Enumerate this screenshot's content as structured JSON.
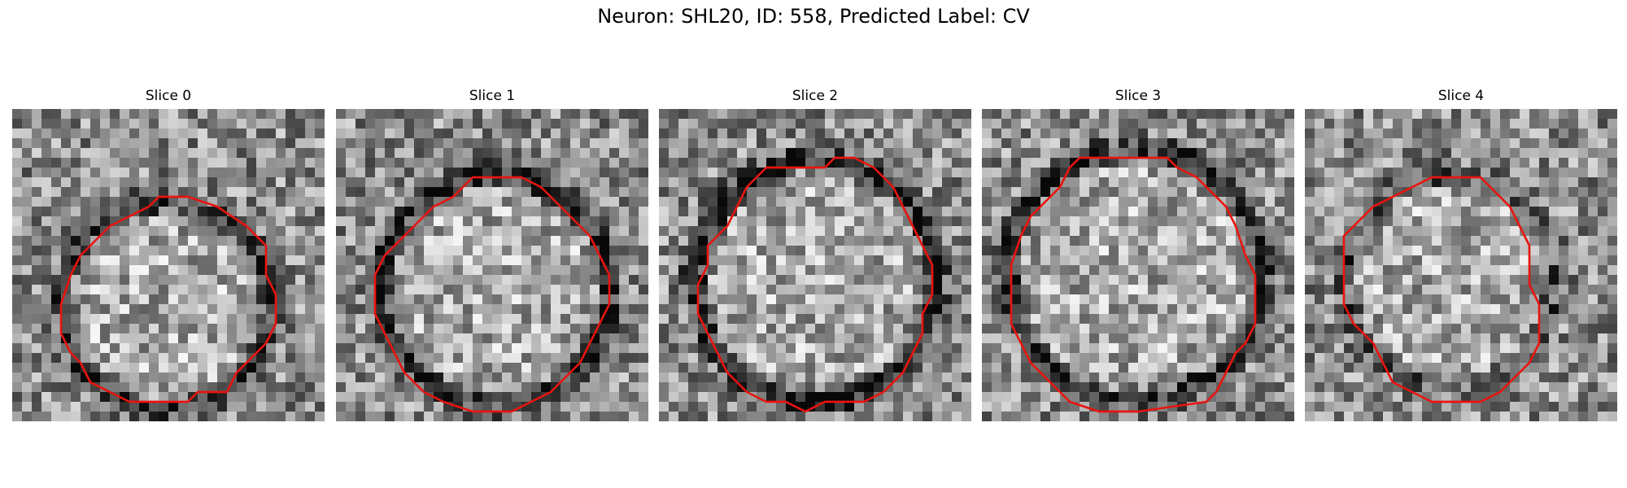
{
  "figure": {
    "title": "Neuron: SHL20, ID: 558, Predicted Label: CV"
  },
  "panels": [
    {
      "title": "Slice 0",
      "seed": 11,
      "dark_ring": 0.55,
      "contour": [
        [
          15,
          9
        ],
        [
          18,
          9
        ],
        [
          21,
          10
        ],
        [
          24,
          12
        ],
        [
          26,
          14
        ],
        [
          26,
          17
        ],
        [
          27,
          19
        ],
        [
          27,
          22
        ],
        [
          26,
          24
        ],
        [
          25,
          25
        ],
        [
          23,
          27
        ],
        [
          22,
          29
        ],
        [
          19,
          29
        ],
        [
          18,
          30
        ],
        [
          15,
          30
        ],
        [
          13,
          30
        ],
        [
          12,
          30
        ],
        [
          10,
          29
        ],
        [
          8,
          28
        ],
        [
          7,
          26
        ],
        [
          6,
          25
        ],
        [
          5,
          23
        ],
        [
          5,
          20
        ],
        [
          6,
          17
        ],
        [
          7,
          15
        ],
        [
          9,
          13
        ],
        [
          10,
          12
        ],
        [
          12,
          11
        ],
        [
          14,
          10
        ],
        [
          15,
          9
        ]
      ]
    },
    {
      "title": "Slice 1",
      "seed": 23,
      "dark_ring": 0.7,
      "contour": [
        [
          14,
          7
        ],
        [
          17,
          7
        ],
        [
          19,
          7
        ],
        [
          21,
          8
        ],
        [
          23,
          10
        ],
        [
          25,
          12
        ],
        [
          26,
          13
        ],
        [
          27,
          15
        ],
        [
          28,
          17
        ],
        [
          28,
          20
        ],
        [
          27,
          22
        ],
        [
          26,
          24
        ],
        [
          25,
          26
        ],
        [
          24,
          27
        ],
        [
          22,
          29
        ],
        [
          20,
          30
        ],
        [
          18,
          31
        ],
        [
          14,
          31
        ],
        [
          11,
          30
        ],
        [
          9,
          29
        ],
        [
          7,
          27
        ],
        [
          6,
          25
        ],
        [
          5,
          23
        ],
        [
          4,
          21
        ],
        [
          4,
          17
        ],
        [
          5,
          15
        ],
        [
          7,
          13
        ],
        [
          8,
          12
        ],
        [
          10,
          10
        ],
        [
          12,
          9
        ],
        [
          14,
          7
        ]
      ]
    },
    {
      "title": "Slice 2",
      "seed": 37,
      "dark_ring": 0.75,
      "contour": [
        [
          11,
          6
        ],
        [
          15,
          6
        ],
        [
          17,
          6
        ],
        [
          18,
          5
        ],
        [
          20,
          5
        ],
        [
          22,
          6
        ],
        [
          24,
          8
        ],
        [
          25,
          10
        ],
        [
          26,
          12
        ],
        [
          27,
          14
        ],
        [
          28,
          16
        ],
        [
          28,
          19
        ],
        [
          27,
          21
        ],
        [
          27,
          23
        ],
        [
          26,
          25
        ],
        [
          25,
          27
        ],
        [
          23,
          29
        ],
        [
          21,
          30
        ],
        [
          17,
          30
        ],
        [
          15,
          31
        ],
        [
          13,
          30
        ],
        [
          11,
          30
        ],
        [
          9,
          29
        ],
        [
          7,
          27
        ],
        [
          6,
          25
        ],
        [
          5,
          23
        ],
        [
          4,
          21
        ],
        [
          4,
          18
        ],
        [
          5,
          16
        ],
        [
          5,
          14
        ],
        [
          7,
          12
        ],
        [
          8,
          10
        ],
        [
          9,
          8
        ],
        [
          11,
          6
        ]
      ]
    },
    {
      "title": "Slice 3",
      "seed": 53,
      "dark_ring": 0.6,
      "contour": [
        [
          10,
          5
        ],
        [
          16,
          5
        ],
        [
          19,
          5
        ],
        [
          20,
          6
        ],
        [
          22,
          7
        ],
        [
          24,
          9
        ],
        [
          25,
          10
        ],
        [
          26,
          12
        ],
        [
          27,
          15
        ],
        [
          28,
          17
        ],
        [
          28,
          22
        ],
        [
          27,
          24
        ],
        [
          26,
          25
        ],
        [
          25,
          27
        ],
        [
          24,
          29
        ],
        [
          23,
          30
        ],
        [
          16,
          31
        ],
        [
          12,
          31
        ],
        [
          9,
          30
        ],
        [
          7,
          28
        ],
        [
          5,
          26
        ],
        [
          4,
          24
        ],
        [
          3,
          22
        ],
        [
          3,
          16
        ],
        [
          4,
          13
        ],
        [
          5,
          11
        ],
        [
          6,
          10
        ],
        [
          8,
          8
        ],
        [
          9,
          6
        ],
        [
          10,
          5
        ]
      ]
    },
    {
      "title": "Slice 4",
      "seed": 71,
      "dark_ring": 0.35,
      "contour": [
        [
          14,
          7
        ],
        [
          18,
          7
        ],
        [
          19,
          8
        ],
        [
          21,
          10
        ],
        [
          22,
          12
        ],
        [
          23,
          14
        ],
        [
          23,
          16
        ],
        [
          23,
          18
        ],
        [
          24,
          20
        ],
        [
          24,
          24
        ],
        [
          23,
          26
        ],
        [
          22,
          27
        ],
        [
          20,
          29
        ],
        [
          18,
          30
        ],
        [
          13,
          30
        ],
        [
          11,
          29
        ],
        [
          9,
          28
        ],
        [
          8,
          26
        ],
        [
          7,
          24
        ],
        [
          5,
          22
        ],
        [
          4,
          20
        ],
        [
          4,
          13
        ],
        [
          6,
          11
        ],
        [
          7,
          10
        ],
        [
          9,
          9
        ],
        [
          11,
          8
        ],
        [
          13,
          7
        ],
        [
          14,
          7
        ]
      ]
    }
  ]
}
